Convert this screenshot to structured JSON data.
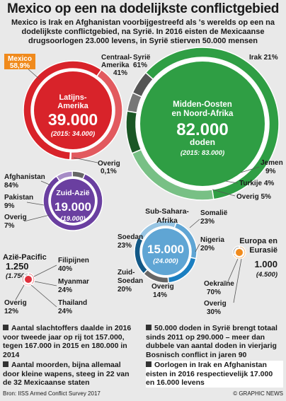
{
  "title": "Mexico op een na dodelijkste conflictgebied",
  "subtitle": "Mexico is Irak en Afghanistan voorbijgestreefd als 's werelds op een na dodelijkste conflictgebied, na Syrië. In 2016 eisten de Mexicaanse drugsoorlogen 23.000 levens, in Syrië stierven 50.000 mensen",
  "colors": {
    "latin_america": "#d8232a",
    "middle_east": "#2f9e44",
    "south_asia": "#6a3fa0",
    "sub_sahara": "#1b7fc1",
    "asia_pacific": "#e0303c",
    "europe": "#f08a1c"
  },
  "chart_data": {
    "type": "bubble-donut",
    "regions": [
      {
        "id": "latin_america",
        "name": "Latijns-Amerika",
        "total": "39.000",
        "previous": "(2015: 34.000)",
        "segments": [
          {
            "label": "Mexico",
            "value": 58.9,
            "text": "58,9%"
          },
          {
            "label": "Centraal-Amerika",
            "value": 41,
            "text": "41%"
          },
          {
            "label": "Overig",
            "value": 0.1,
            "text": "0,1%"
          }
        ]
      },
      {
        "id": "middle_east",
        "name": "Midden-Oosten en Noord-Afrika",
        "total": "82.000",
        "unit": "doden",
        "previous": "(2015: 83.000)",
        "segments": [
          {
            "label": "Syrië",
            "value": 61,
            "text": "61%"
          },
          {
            "label": "Irak",
            "value": 21,
            "text": "21%"
          },
          {
            "label": "Jemen",
            "value": 9,
            "text": "9%"
          },
          {
            "label": "Turkije",
            "value": 4,
            "text": "4%"
          },
          {
            "label": "Overig",
            "value": 5,
            "text": "5%"
          }
        ]
      },
      {
        "id": "south_asia",
        "name": "Zuid-Azië",
        "total": "19.000",
        "previous": "(19.000)",
        "segments": [
          {
            "label": "Afghanistan",
            "value": 84,
            "text": "84%"
          },
          {
            "label": "Pakistan",
            "value": 9,
            "text": "9%"
          },
          {
            "label": "Overig",
            "value": 7,
            "text": "7%"
          }
        ]
      },
      {
        "id": "sub_sahara",
        "name": "Sub-Sahara-Afrika",
        "total": "15.000",
        "previous": "(24.000)",
        "segments": [
          {
            "label": "Somalië",
            "value": 23,
            "text": "23%"
          },
          {
            "label": "Nigeria",
            "value": 20,
            "text": "20%"
          },
          {
            "label": "Overig",
            "value": 14,
            "text": "14%"
          },
          {
            "label": "Zuid-Soedan",
            "value": 20,
            "text": "20%"
          },
          {
            "label": "Soedan",
            "value": 23,
            "text": "23%"
          }
        ]
      },
      {
        "id": "asia_pacific",
        "name": "Azië-Pacific",
        "total": "1.250",
        "previous": "(1.750)",
        "segments": [
          {
            "label": "Filipijnen",
            "value": 40,
            "text": "40%"
          },
          {
            "label": "Myanmar",
            "value": 24,
            "text": "24%"
          },
          {
            "label": "Thailand",
            "value": 24,
            "text": "24%"
          },
          {
            "label": "Overig",
            "value": 12,
            "text": "12%"
          }
        ]
      },
      {
        "id": "europe",
        "name": "Europa en Eurasië",
        "total": "1.000",
        "previous": "(4.500)",
        "segments": [
          {
            "label": "Oekraïne",
            "value": 70,
            "text": "70%"
          },
          {
            "label": "Overig",
            "value": 30,
            "text": "30%"
          }
        ]
      }
    ]
  },
  "facts": [
    "Aantal slachtoffers daalde in 2016 voor tweede jaar op rij tot 157.000, tegen 167.000 in 2015 en 180.000 in 2014",
    "Aantal moorden, bijna allemaal door kleine wapens, steeg in 22 van de 32 Mexicaanse staten",
    "50.000 doden in Syrië brengt totaal sinds 2011 op 290.000 – meer dan dubbele van aantal doden in vierjarig Bosnisch conflict in jaren 90",
    "Oorlogen in Irak en Afghanistan eisten in 2016 respectievelijk 17.000 en 16.000 levens"
  ],
  "source": "Bron: IISS Armed Conflict Survey 2017",
  "credit": "© GRAPHIC NEWS"
}
